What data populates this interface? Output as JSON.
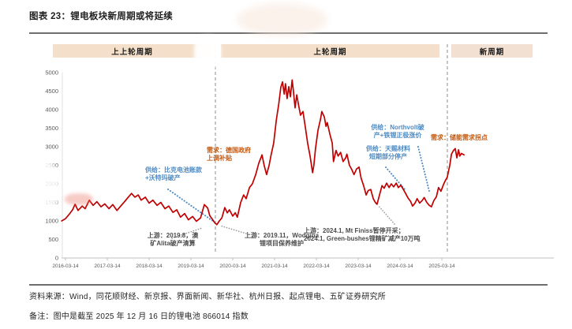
{
  "title": "图表 23：锂电板块新周期或将延续",
  "periods": {
    "prev_prev": "上上轮周期",
    "prev": "上轮周期",
    "new": "新周期"
  },
  "chart_data": {
    "type": "line",
    "title": "图表 23：锂电板块新周期或将延续",
    "xlabel": "",
    "ylabel": "",
    "ylim": [
      0,
      5000
    ],
    "grid": false,
    "legend": "none",
    "y_ticks": [
      0,
      500,
      1000,
      1500,
      2000,
      2500,
      3000,
      3500,
      4000,
      4500,
      5000
    ],
    "x_ticks": [
      "2016-03-14",
      "2017-03-14",
      "2018-03-14",
      "2019-03-14",
      "2020-03-14",
      "2021-03-14",
      "2022-03-14",
      "2023-03-14",
      "2024-03-14",
      "2025-03-14"
    ],
    "cycle_boundaries_year": [
      2019.87,
      2025.33
    ],
    "series": [
      {
        "name": "锂电池 866014 指数",
        "color": "#c00000",
        "points": [
          [
            2016.11,
            1000
          ],
          [
            2016.2,
            1060
          ],
          [
            2016.29,
            1180
          ],
          [
            2016.37,
            1300
          ],
          [
            2016.43,
            1450
          ],
          [
            2016.5,
            1280
          ],
          [
            2016.6,
            1400
          ],
          [
            2016.67,
            1330
          ],
          [
            2016.77,
            1560
          ],
          [
            2016.86,
            1420
          ],
          [
            2016.95,
            1520
          ],
          [
            2017.05,
            1380
          ],
          [
            2017.14,
            1460
          ],
          [
            2017.24,
            1330
          ],
          [
            2017.33,
            1440
          ],
          [
            2017.43,
            1280
          ],
          [
            2017.52,
            1400
          ],
          [
            2017.62,
            1530
          ],
          [
            2017.71,
            1650
          ],
          [
            2017.78,
            1740
          ],
          [
            2017.86,
            1640
          ],
          [
            2017.94,
            1700
          ],
          [
            2018.01,
            1560
          ],
          [
            2018.11,
            1640
          ],
          [
            2018.2,
            1480
          ],
          [
            2018.29,
            1560
          ],
          [
            2018.39,
            1420
          ],
          [
            2018.48,
            1500
          ],
          [
            2018.58,
            1330
          ],
          [
            2018.67,
            1400
          ],
          [
            2018.77,
            1230
          ],
          [
            2018.86,
            1300
          ],
          [
            2018.95,
            1100
          ],
          [
            2019.05,
            1200
          ],
          [
            2019.14,
            1030
          ],
          [
            2019.24,
            1120
          ],
          [
            2019.33,
            990
          ],
          [
            2019.43,
            1080
          ],
          [
            2019.52,
            1440
          ],
          [
            2019.6,
            1350
          ],
          [
            2019.65,
            1140
          ],
          [
            2019.71,
            1050
          ],
          [
            2019.77,
            950
          ],
          [
            2019.82,
            900
          ],
          [
            2019.88,
            1000
          ],
          [
            2019.94,
            1080
          ],
          [
            2020.01,
            1360
          ],
          [
            2020.07,
            1220
          ],
          [
            2020.12,
            1300
          ],
          [
            2020.2,
            1130
          ],
          [
            2020.26,
            1220
          ],
          [
            2020.31,
            1100
          ],
          [
            2020.39,
            1500
          ],
          [
            2020.46,
            1700
          ],
          [
            2020.52,
            1600
          ],
          [
            2020.6,
            1900
          ],
          [
            2020.67,
            2000
          ],
          [
            2020.75,
            2250
          ],
          [
            2020.82,
            2550
          ],
          [
            2020.9,
            2780
          ],
          [
            2020.95,
            2500
          ],
          [
            2021.01,
            2250
          ],
          [
            2021.07,
            2500
          ],
          [
            2021.12,
            2800
          ],
          [
            2021.18,
            3100
          ],
          [
            2021.24,
            3700
          ],
          [
            2021.3,
            4150
          ],
          [
            2021.35,
            4600
          ],
          [
            2021.39,
            4750
          ],
          [
            2021.43,
            4420
          ],
          [
            2021.46,
            4700
          ],
          [
            2021.5,
            4300
          ],
          [
            2021.54,
            4620
          ],
          [
            2021.58,
            4350
          ],
          [
            2021.62,
            4800
          ],
          [
            2021.65,
            4500
          ],
          [
            2021.69,
            4050
          ],
          [
            2021.73,
            4400
          ],
          [
            2021.77,
            4150
          ],
          [
            2021.82,
            3850
          ],
          [
            2021.88,
            3950
          ],
          [
            2021.94,
            3500
          ],
          [
            2021.99,
            3100
          ],
          [
            2022.05,
            2750
          ],
          [
            2022.11,
            2300
          ],
          [
            2022.14,
            2500
          ],
          [
            2022.18,
            2950
          ],
          [
            2022.24,
            3450
          ],
          [
            2022.3,
            3750
          ],
          [
            2022.33,
            3950
          ],
          [
            2022.39,
            3800
          ],
          [
            2022.43,
            3550
          ],
          [
            2022.46,
            3650
          ],
          [
            2022.52,
            3350
          ],
          [
            2022.58,
            3100
          ],
          [
            2022.61,
            2600
          ],
          [
            2022.67,
            2900
          ],
          [
            2022.72,
            2750
          ],
          [
            2022.78,
            2850
          ],
          [
            2022.84,
            2600
          ],
          [
            2022.9,
            2700
          ],
          [
            2022.93,
            2800
          ],
          [
            2022.99,
            2500
          ],
          [
            2023.05,
            2380
          ],
          [
            2023.1,
            2250
          ],
          [
            2023.16,
            2400
          ],
          [
            2023.22,
            2450
          ],
          [
            2023.27,
            2150
          ],
          [
            2023.33,
            1950
          ],
          [
            2023.39,
            1700
          ],
          [
            2023.44,
            1820
          ],
          [
            2023.5,
            1850
          ],
          [
            2023.56,
            1600
          ],
          [
            2023.61,
            1500
          ],
          [
            2023.65,
            1450
          ],
          [
            2023.71,
            1700
          ],
          [
            2023.77,
            1950
          ],
          [
            2023.82,
            1880
          ],
          [
            2023.88,
            2020
          ],
          [
            2023.94,
            1900
          ],
          [
            2023.99,
            2000
          ],
          [
            2024.05,
            1920
          ],
          [
            2024.11,
            2020
          ],
          [
            2024.16,
            1900
          ],
          [
            2024.22,
            1960
          ],
          [
            2024.28,
            1850
          ],
          [
            2024.33,
            1750
          ],
          [
            2024.39,
            1620
          ],
          [
            2024.45,
            1530
          ],
          [
            2024.5,
            1400
          ],
          [
            2024.56,
            1480
          ],
          [
            2024.61,
            1600
          ],
          [
            2024.67,
            1480
          ],
          [
            2024.73,
            1550
          ],
          [
            2024.78,
            1630
          ],
          [
            2024.84,
            1500
          ],
          [
            2024.9,
            1420
          ],
          [
            2024.95,
            1380
          ],
          [
            2025.01,
            1550
          ],
          [
            2025.07,
            1650
          ],
          [
            2025.12,
            1900
          ],
          [
            2025.18,
            1800
          ],
          [
            2025.24,
            1980
          ],
          [
            2025.29,
            2100
          ],
          [
            2025.33,
            2180
          ],
          [
            2025.39,
            2500
          ],
          [
            2025.43,
            2800
          ],
          [
            2025.48,
            2900
          ],
          [
            2025.52,
            2950
          ],
          [
            2025.56,
            2700
          ],
          [
            2025.6,
            2920
          ],
          [
            2025.63,
            2750
          ],
          [
            2025.67,
            2820
          ],
          [
            2025.73,
            2780
          ]
        ]
      }
    ],
    "annotations": {
      "supply_bike": {
        "text": "供给：比克电池账款\n+沃特玛破产",
        "color": "#4e8bc4"
      },
      "demand_germany": {
        "text": "需求：德国政府\n上调补贴",
        "color": "#c55a11"
      },
      "upstream_alita": {
        "text": "上游：2019.8，澳\n矿Alita破产清算",
        "color": "#4d4d4d"
      },
      "upstream_wodgina": {
        "text": "上游：2019.11，Wodgina\n锂项目保养维护",
        "color": "#4d4d4d"
      },
      "upstream_2024": {
        "text": "上游：2024.1, Mt Finiss暂停开采；\n2024.1, Green-bushes锂精矿减产10万吨",
        "color": "#4d4d4d"
      },
      "supply_northvolt": {
        "text": "供给：Northvolt破\n产+铁锂正极涨价",
        "color": "#4e8bc4"
      },
      "supply_tinci": {
        "text": "供给：天赐材料\n短期部分停产",
        "color": "#4e8bc4"
      },
      "demand_storage": {
        "text": "需求：储能需求拐点",
        "color": "#c55a11"
      }
    }
  },
  "footer": {
    "source": "资料来源：Wind，同花顺财经、新京报、界面新闻、新华社、杭州日报、起点锂电、五矿证券研究所",
    "note": "备注：图中是截至 2025 年 12 月 16 日的锂电池 866014 指数"
  }
}
